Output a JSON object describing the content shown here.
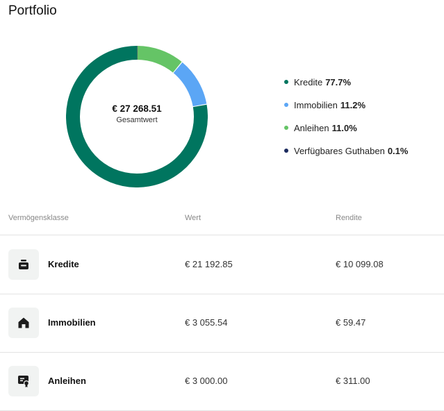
{
  "page": {
    "title": "Portfolio"
  },
  "summary": {
    "total_value": "€ 27 268.51",
    "total_label": "Gesamtwert"
  },
  "legend": [
    {
      "label": "Kredite",
      "pct": "77.7%",
      "color": "#00755f"
    },
    {
      "label": "Immobilien",
      "pct": "11.2%",
      "color": "#5ba6f5"
    },
    {
      "label": "Anleihen",
      "pct": "11.0%",
      "color": "#65c466"
    },
    {
      "label": "Verfügbares Guthaben",
      "pct": "0.1%",
      "color": "#1b2a5e"
    }
  ],
  "chart_data": {
    "type": "pie",
    "categories": [
      "Kredite",
      "Immobilien",
      "Anleihen",
      "Verfügbares Guthaben"
    ],
    "values": [
      77.7,
      11.2,
      11.0,
      0.1
    ],
    "colors": [
      "#00755f",
      "#5ba6f5",
      "#65c466",
      "#1b2a5e"
    ],
    "style": "donut"
  },
  "table": {
    "headers": {
      "asset_class": "Vermögensklasse",
      "value": "Wert",
      "yield": "Rendite"
    },
    "rows": [
      {
        "name": "Kredite",
        "value": "€ 21 192.85",
        "yield": "€ 10 099.08",
        "icon": "wallet-icon"
      },
      {
        "name": "Immobilien",
        "value": "€ 3 055.54",
        "yield": "€ 59.47",
        "icon": "house-icon"
      },
      {
        "name": "Anleihen",
        "value": "€ 3 000.00",
        "yield": "€ 311.00",
        "icon": "certificate-icon"
      }
    ]
  }
}
